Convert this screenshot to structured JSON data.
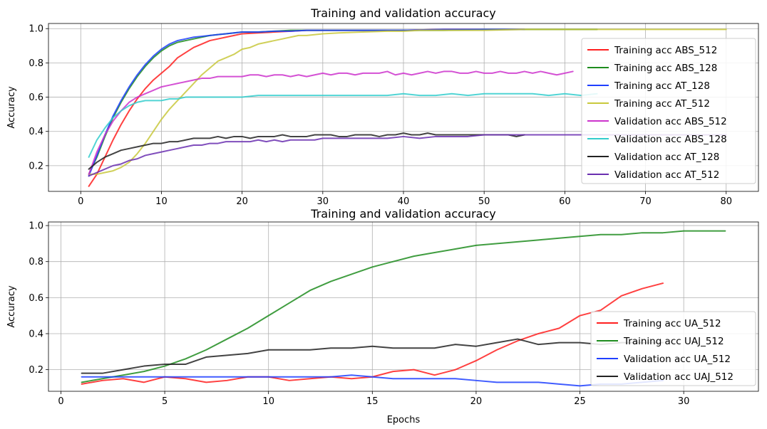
{
  "chart_data": [
    {
      "type": "line",
      "title": "Training and validation accuracy",
      "xlabel": "",
      "ylabel": "Accuracy",
      "xlim": [
        -4,
        84
      ],
      "ylim": [
        0.05,
        1.03
      ],
      "xticks": [
        0,
        10,
        20,
        30,
        40,
        50,
        60,
        70,
        80
      ],
      "yticks": [
        0.2,
        0.4,
        0.6,
        0.8,
        1.0
      ],
      "grid": true,
      "legend_position": "right",
      "series": [
        {
          "name": "Training acc ABS_512",
          "color": "#ff1f1f",
          "x": [
            1,
            2,
            3,
            4,
            5,
            6,
            7,
            8,
            9,
            10,
            11,
            12,
            13,
            14,
            15,
            16,
            17,
            18,
            19,
            20,
            22,
            24,
            26,
            28,
            30,
            35,
            40,
            45,
            50,
            55
          ],
          "y": [
            0.08,
            0.15,
            0.25,
            0.35,
            0.44,
            0.52,
            0.59,
            0.65,
            0.7,
            0.74,
            0.78,
            0.83,
            0.86,
            0.89,
            0.91,
            0.93,
            0.94,
            0.95,
            0.96,
            0.97,
            0.975,
            0.98,
            0.985,
            0.99,
            0.99,
            0.99,
            0.99,
            0.995,
            0.995,
            0.995
          ]
        },
        {
          "name": "Training acc ABS_128",
          "color": "#1e8c1e",
          "x": [
            1,
            2,
            3,
            4,
            5,
            6,
            7,
            8,
            9,
            10,
            11,
            12,
            13,
            14,
            15,
            16,
            17,
            18,
            19,
            20,
            22,
            24,
            26,
            28,
            30,
            35,
            40,
            45,
            50,
            55,
            60,
            64
          ],
          "y": [
            0.15,
            0.25,
            0.37,
            0.48,
            0.57,
            0.65,
            0.72,
            0.78,
            0.83,
            0.87,
            0.9,
            0.92,
            0.93,
            0.94,
            0.95,
            0.96,
            0.965,
            0.97,
            0.975,
            0.98,
            0.98,
            0.985,
            0.99,
            0.99,
            0.99,
            0.99,
            0.99,
            0.99,
            0.995,
            0.995,
            0.995,
            0.995
          ]
        },
        {
          "name": "Training acc AT_128",
          "color": "#1f3fff",
          "x": [
            1,
            2,
            3,
            4,
            5,
            6,
            7,
            8,
            9,
            10,
            11,
            12,
            13,
            14,
            15,
            16,
            17,
            18,
            19,
            20,
            22,
            24,
            26,
            28,
            30,
            35,
            40,
            45,
            50,
            55
          ],
          "y": [
            0.14,
            0.26,
            0.38,
            0.49,
            0.58,
            0.66,
            0.73,
            0.79,
            0.84,
            0.88,
            0.91,
            0.93,
            0.94,
            0.95,
            0.955,
            0.96,
            0.965,
            0.97,
            0.975,
            0.98,
            0.98,
            0.985,
            0.985,
            0.99,
            0.99,
            0.99,
            0.99,
            0.995,
            0.995,
            0.995
          ]
        },
        {
          "name": "Training acc AT_512",
          "color": "#c8c83c",
          "x": [
            1,
            2,
            3,
            4,
            5,
            6,
            7,
            8,
            9,
            10,
            11,
            12,
            13,
            14,
            15,
            16,
            17,
            18,
            19,
            20,
            21,
            22,
            23,
            24,
            25,
            26,
            27,
            28,
            30,
            32,
            35,
            38,
            40,
            42,
            45,
            50,
            55,
            60,
            65,
            70,
            75,
            80
          ],
          "y": [
            0.15,
            0.15,
            0.16,
            0.17,
            0.19,
            0.22,
            0.27,
            0.33,
            0.4,
            0.47,
            0.53,
            0.58,
            0.63,
            0.68,
            0.73,
            0.77,
            0.81,
            0.83,
            0.85,
            0.88,
            0.89,
            0.91,
            0.92,
            0.93,
            0.94,
            0.95,
            0.96,
            0.96,
            0.97,
            0.975,
            0.98,
            0.985,
            0.985,
            0.99,
            0.99,
            0.99,
            0.995,
            0.995,
            0.995,
            0.995,
            0.995,
            0.995
          ]
        },
        {
          "name": "Validation acc ABS_512",
          "color": "#cc33cc",
          "x": [
            1,
            2,
            3,
            4,
            5,
            6,
            7,
            8,
            9,
            10,
            11,
            12,
            13,
            14,
            15,
            16,
            17,
            18,
            19,
            20,
            21,
            22,
            23,
            24,
            25,
            26,
            27,
            28,
            29,
            30,
            31,
            32,
            33,
            34,
            35,
            36,
            37,
            38,
            39,
            40,
            41,
            42,
            43,
            44,
            45,
            46,
            47,
            48,
            49,
            50,
            51,
            52,
            53,
            54,
            55,
            56,
            57,
            58,
            59,
            60,
            61
          ],
          "y": [
            0.15,
            0.28,
            0.38,
            0.46,
            0.52,
            0.57,
            0.6,
            0.62,
            0.64,
            0.66,
            0.67,
            0.68,
            0.69,
            0.7,
            0.71,
            0.71,
            0.72,
            0.72,
            0.72,
            0.72,
            0.73,
            0.73,
            0.72,
            0.73,
            0.73,
            0.72,
            0.73,
            0.72,
            0.73,
            0.74,
            0.73,
            0.74,
            0.74,
            0.73,
            0.74,
            0.74,
            0.74,
            0.75,
            0.73,
            0.74,
            0.73,
            0.74,
            0.75,
            0.74,
            0.75,
            0.75,
            0.74,
            0.74,
            0.75,
            0.74,
            0.74,
            0.75,
            0.74,
            0.74,
            0.75,
            0.74,
            0.75,
            0.74,
            0.73,
            0.74,
            0.75
          ]
        },
        {
          "name": "Validation acc ABS_128",
          "color": "#33cccc",
          "x": [
            1,
            2,
            3,
            4,
            5,
            6,
            7,
            8,
            9,
            10,
            11,
            12,
            13,
            14,
            15,
            16,
            17,
            18,
            19,
            20,
            22,
            24,
            26,
            28,
            30,
            32,
            34,
            36,
            38,
            40,
            42,
            44,
            46,
            48,
            50,
            52,
            54,
            56,
            58,
            60,
            62,
            64
          ],
          "y": [
            0.25,
            0.35,
            0.42,
            0.48,
            0.52,
            0.55,
            0.57,
            0.58,
            0.58,
            0.58,
            0.59,
            0.59,
            0.6,
            0.6,
            0.6,
            0.6,
            0.6,
            0.6,
            0.6,
            0.6,
            0.61,
            0.61,
            0.61,
            0.61,
            0.61,
            0.61,
            0.61,
            0.61,
            0.61,
            0.62,
            0.61,
            0.61,
            0.62,
            0.61,
            0.62,
            0.62,
            0.62,
            0.62,
            0.61,
            0.62,
            0.61,
            0.62
          ]
        },
        {
          "name": "Validation acc AT_128",
          "color": "#222222",
          "x": [
            1,
            2,
            3,
            4,
            5,
            6,
            7,
            8,
            9,
            10,
            11,
            12,
            13,
            14,
            15,
            16,
            17,
            18,
            19,
            20,
            21,
            22,
            23,
            24,
            25,
            26,
            27,
            28,
            29,
            30,
            31,
            32,
            33,
            34,
            35,
            36,
            37,
            38,
            39,
            40,
            41,
            42,
            43,
            44,
            45,
            46,
            47,
            48,
            49,
            50,
            51,
            52,
            53,
            54,
            55
          ],
          "y": [
            0.18,
            0.22,
            0.25,
            0.27,
            0.29,
            0.3,
            0.31,
            0.32,
            0.33,
            0.33,
            0.34,
            0.34,
            0.35,
            0.36,
            0.36,
            0.36,
            0.37,
            0.36,
            0.37,
            0.37,
            0.36,
            0.37,
            0.37,
            0.37,
            0.38,
            0.37,
            0.37,
            0.37,
            0.38,
            0.38,
            0.38,
            0.37,
            0.37,
            0.38,
            0.38,
            0.38,
            0.37,
            0.38,
            0.38,
            0.39,
            0.38,
            0.38,
            0.39,
            0.38,
            0.38,
            0.38,
            0.38,
            0.38,
            0.38,
            0.38,
            0.38,
            0.38,
            0.38,
            0.37,
            0.38
          ]
        },
        {
          "name": "Validation acc AT_512",
          "color": "#6a2fb0",
          "x": [
            1,
            2,
            3,
            4,
            5,
            6,
            7,
            8,
            9,
            10,
            11,
            12,
            13,
            14,
            15,
            16,
            17,
            18,
            19,
            20,
            21,
            22,
            23,
            24,
            25,
            26,
            27,
            28,
            29,
            30,
            32,
            34,
            36,
            38,
            40,
            42,
            44,
            46,
            48,
            50,
            52,
            54,
            56,
            58,
            60,
            62,
            64,
            66,
            68,
            70,
            72,
            74,
            76,
            78,
            80
          ],
          "y": [
            0.14,
            0.16,
            0.18,
            0.2,
            0.21,
            0.23,
            0.24,
            0.26,
            0.27,
            0.28,
            0.29,
            0.3,
            0.31,
            0.32,
            0.32,
            0.33,
            0.33,
            0.34,
            0.34,
            0.34,
            0.34,
            0.35,
            0.34,
            0.35,
            0.34,
            0.35,
            0.35,
            0.35,
            0.35,
            0.36,
            0.36,
            0.36,
            0.36,
            0.36,
            0.37,
            0.36,
            0.37,
            0.37,
            0.37,
            0.38,
            0.38,
            0.38,
            0.38,
            0.38,
            0.38,
            0.38,
            0.38,
            0.38,
            0.38,
            0.38,
            0.38,
            0.38,
            0.38,
            0.38,
            0.38
          ]
        }
      ]
    },
    {
      "type": "line",
      "title": "Training and validation accuracy",
      "xlabel": "Epochs",
      "ylabel": "Accuracy",
      "xlim": [
        -0.6,
        33.6
      ],
      "ylim": [
        0.08,
        1.02
      ],
      "xticks": [
        0,
        5,
        10,
        15,
        20,
        25,
        30
      ],
      "yticks": [
        0.2,
        0.4,
        0.6,
        0.8,
        1.0
      ],
      "grid": true,
      "legend_position": "right",
      "series": [
        {
          "name": "Training acc UA_512",
          "color": "#ff1f1f",
          "x": [
            1,
            2,
            3,
            4,
            5,
            6,
            7,
            8,
            9,
            10,
            11,
            12,
            13,
            14,
            15,
            16,
            17,
            18,
            19,
            20,
            21,
            22,
            23,
            24,
            25,
            26,
            27,
            28,
            29
          ],
          "y": [
            0.12,
            0.14,
            0.15,
            0.13,
            0.16,
            0.15,
            0.13,
            0.14,
            0.16,
            0.16,
            0.14,
            0.15,
            0.16,
            0.15,
            0.16,
            0.19,
            0.2,
            0.17,
            0.2,
            0.25,
            0.31,
            0.36,
            0.4,
            0.43,
            0.5,
            0.53,
            0.61,
            0.65,
            0.68
          ]
        },
        {
          "name": "Training acc UAJ_512",
          "color": "#1e8c1e",
          "x": [
            1,
            2,
            3,
            4,
            5,
            6,
            7,
            8,
            9,
            10,
            11,
            12,
            13,
            14,
            15,
            16,
            17,
            18,
            19,
            20,
            21,
            22,
            23,
            24,
            25,
            26,
            27,
            28,
            29,
            30,
            31,
            32
          ],
          "y": [
            0.13,
            0.15,
            0.17,
            0.19,
            0.22,
            0.26,
            0.31,
            0.37,
            0.43,
            0.5,
            0.57,
            0.64,
            0.69,
            0.73,
            0.77,
            0.8,
            0.83,
            0.85,
            0.87,
            0.89,
            0.9,
            0.91,
            0.92,
            0.93,
            0.94,
            0.95,
            0.95,
            0.96,
            0.96,
            0.97,
            0.97,
            0.97
          ]
        },
        {
          "name": "Validation acc UA_512",
          "color": "#1f3fff",
          "x": [
            1,
            2,
            3,
            4,
            5,
            6,
            7,
            8,
            9,
            10,
            11,
            12,
            13,
            14,
            15,
            16,
            17,
            18,
            19,
            20,
            21,
            22,
            23,
            24,
            25,
            26,
            27,
            28,
            29
          ],
          "y": [
            0.16,
            0.16,
            0.16,
            0.16,
            0.16,
            0.16,
            0.16,
            0.16,
            0.16,
            0.16,
            0.16,
            0.16,
            0.16,
            0.17,
            0.16,
            0.15,
            0.15,
            0.15,
            0.15,
            0.14,
            0.13,
            0.13,
            0.13,
            0.12,
            0.11,
            0.12,
            0.12,
            0.13,
            0.14
          ]
        },
        {
          "name": "Validation acc UAJ_512",
          "color": "#222222",
          "x": [
            1,
            2,
            3,
            4,
            5,
            6,
            7,
            8,
            9,
            10,
            11,
            12,
            13,
            14,
            15,
            16,
            17,
            18,
            19,
            20,
            21,
            22,
            23,
            24,
            25,
            26,
            27,
            28,
            29
          ],
          "y": [
            0.18,
            0.18,
            0.2,
            0.22,
            0.23,
            0.23,
            0.27,
            0.28,
            0.29,
            0.31,
            0.31,
            0.31,
            0.32,
            0.32,
            0.33,
            0.32,
            0.32,
            0.32,
            0.34,
            0.33,
            0.35,
            0.37,
            0.34,
            0.35,
            0.35,
            0.34,
            0.35,
            0.35,
            0.35
          ]
        }
      ]
    }
  ]
}
